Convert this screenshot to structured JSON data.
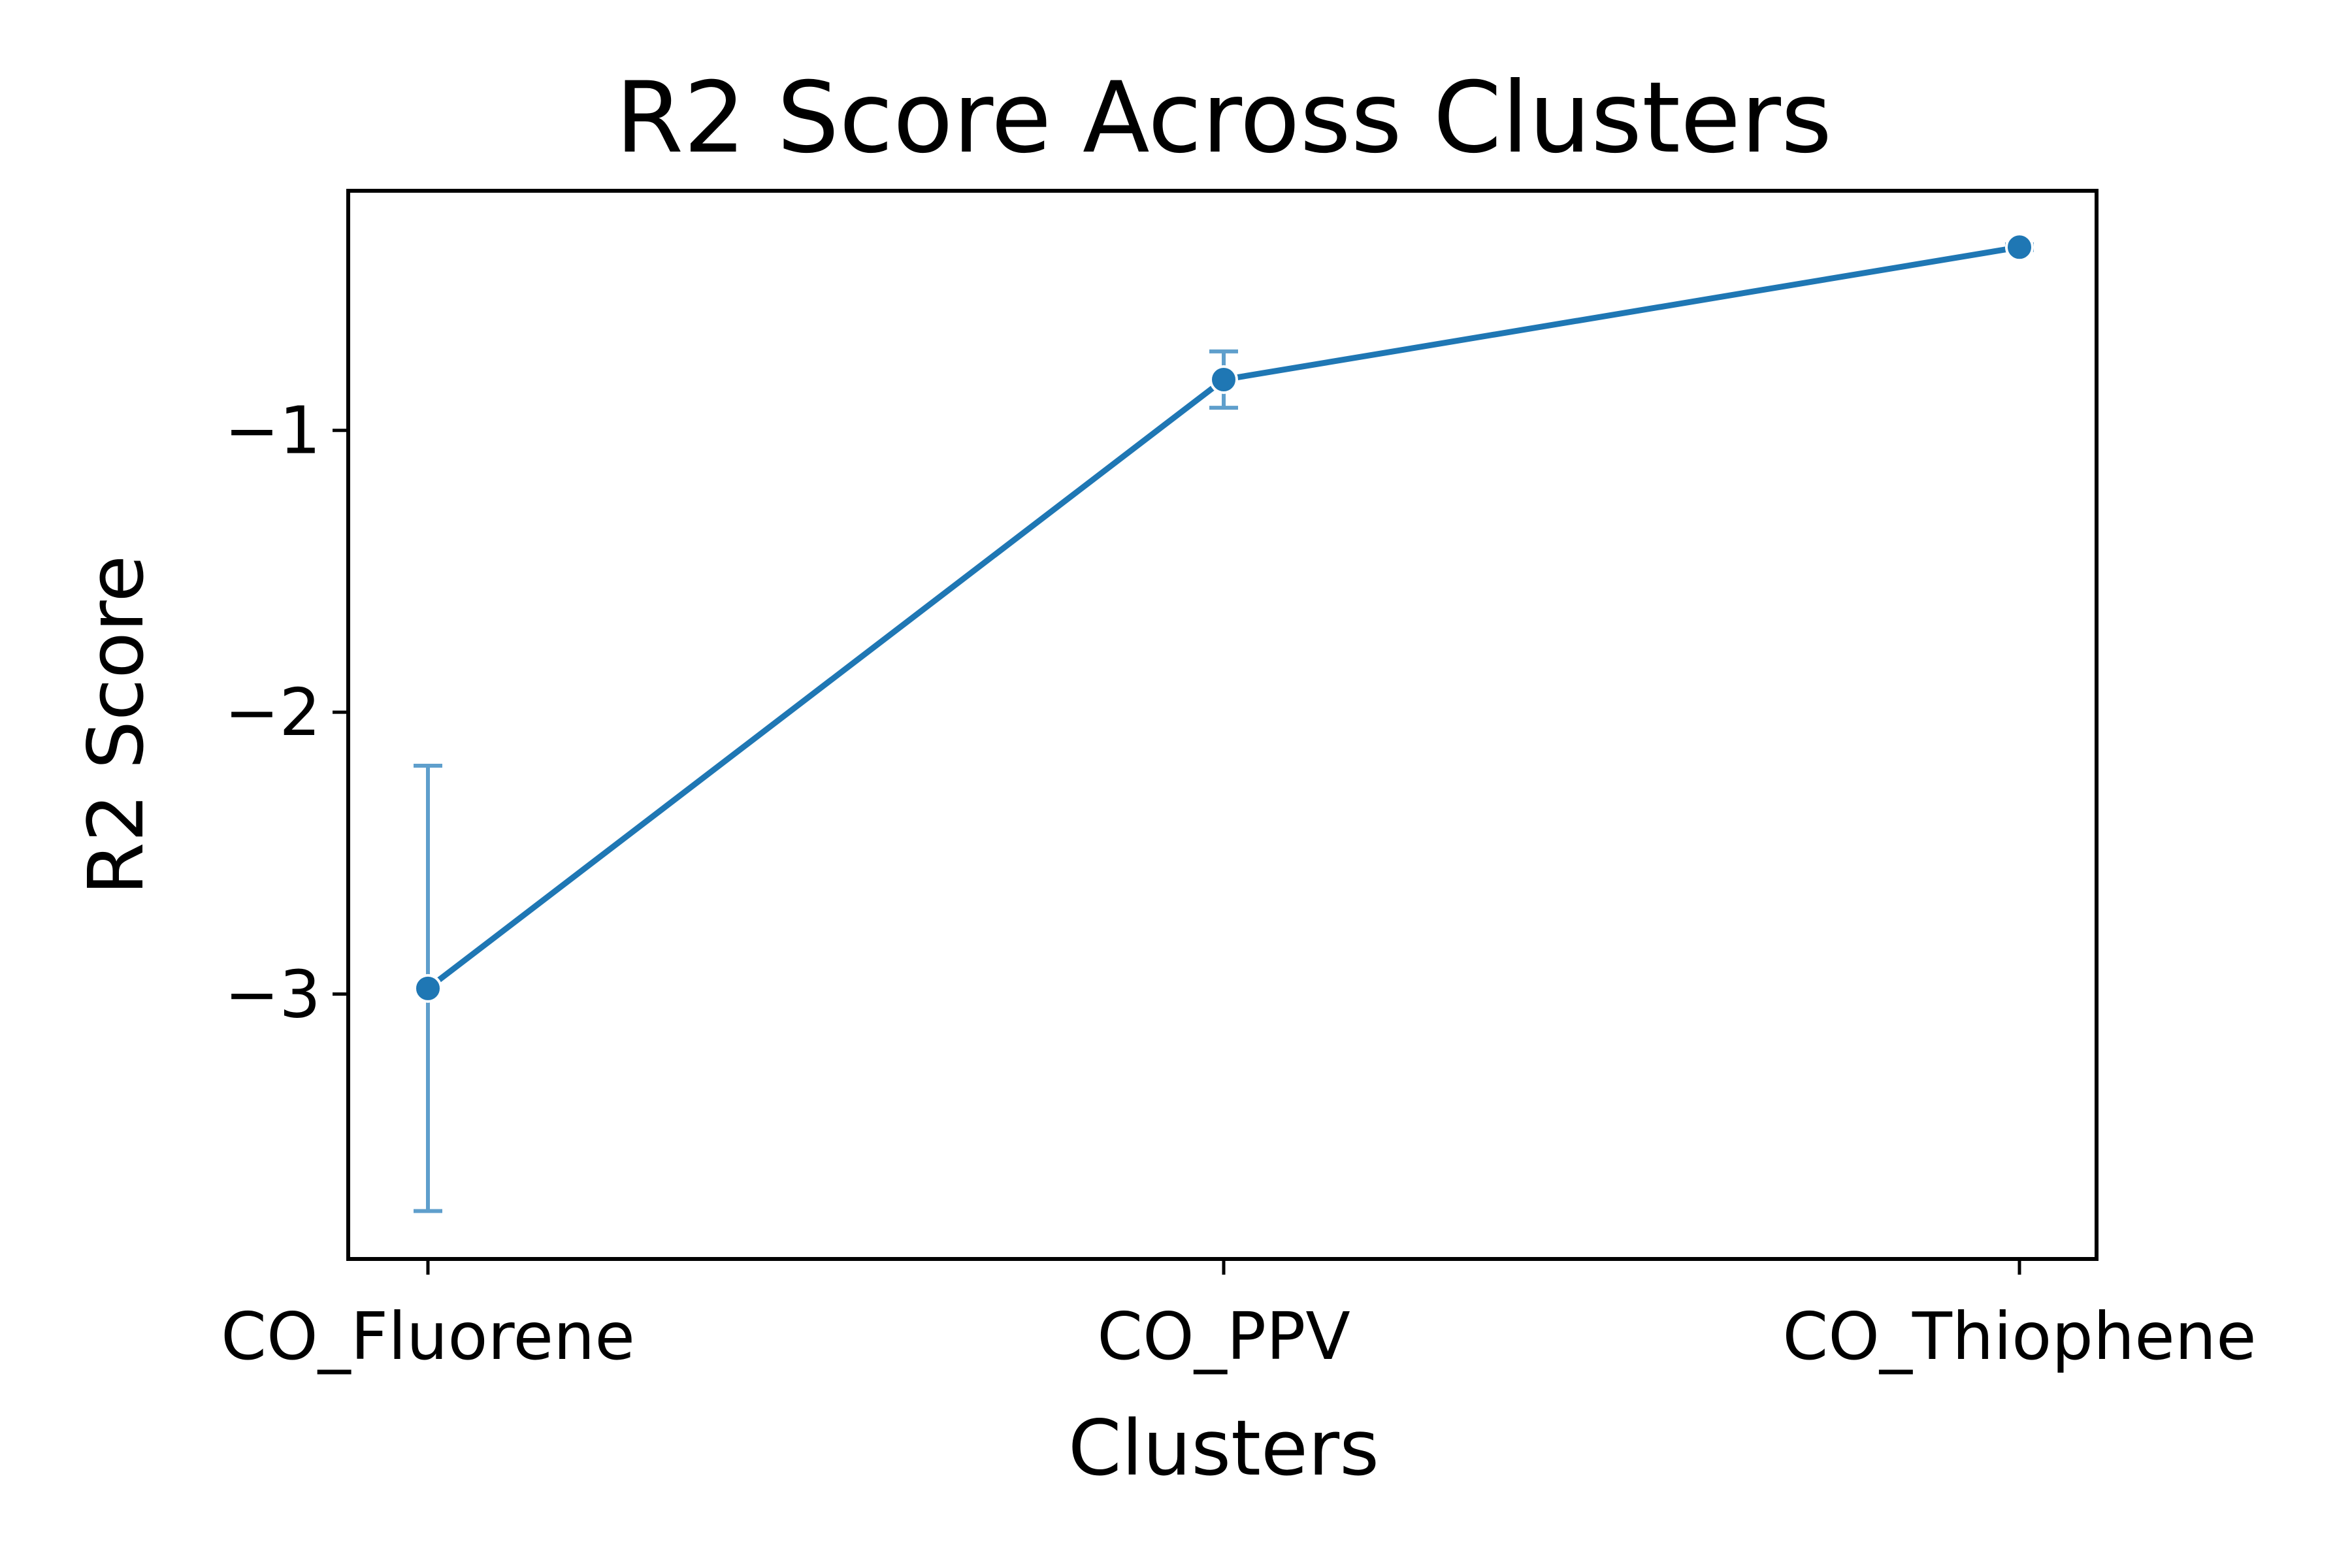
{
  "chart_data": {
    "type": "line",
    "title": "R2 Score Across Clusters",
    "xlabel": "Clusters",
    "ylabel": "R2 Score",
    "categories": [
      "CO_Fluorene",
      "CO_PPV",
      "CO_Thiophene"
    ],
    "series": [
      {
        "values": [
          -2.98,
          -0.82,
          -0.35
        ],
        "error_low": [
          -3.77,
          -0.92,
          -0.36
        ],
        "error_high": [
          -2.19,
          -0.72,
          -0.34
        ]
      }
    ],
    "ylim": [
      -3.94,
      -0.15
    ],
    "yticks": [
      -3,
      -2,
      -1
    ],
    "ytick_labels": [
      "−3",
      "−2",
      "−1"
    ],
    "grid": false,
    "legend": "none",
    "colors": {
      "line": "#1f77b4",
      "errorbar": "#5f9fcc",
      "axes": "#000000"
    }
  }
}
